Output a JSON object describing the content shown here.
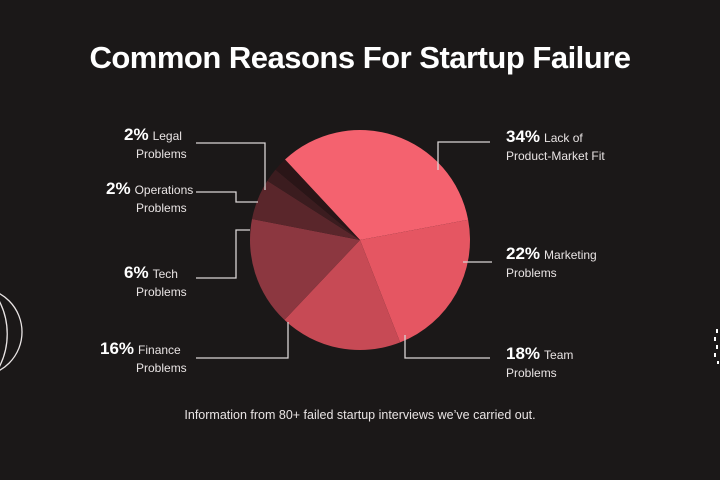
{
  "page": {
    "title": "Common Reasons For Startup Failure",
    "footnote": "Information from 80+ failed startup interviews we’ve carried out."
  },
  "chart_data": {
    "type": "pie",
    "title": "Common Reasons For Startup Failure",
    "slices": [
      {
        "pct_label": "34%",
        "label_line1": "Lack of",
        "label_line2": "Product-Market Fit",
        "value": 34,
        "color": "#f4626f"
      },
      {
        "pct_label": "22%",
        "label_line1": "Marketing",
        "label_line2": "Problems",
        "value": 22,
        "color": "#e55662"
      },
      {
        "pct_label": "18%",
        "label_line1": "Team",
        "label_line2": "Problems",
        "value": 18,
        "color": "#c74a55"
      },
      {
        "pct_label": "16%",
        "label_line1": "Finance",
        "label_line2": "Problems",
        "value": 16,
        "color": "#8c3740"
      },
      {
        "pct_label": "6%",
        "label_line1": "Tech",
        "label_line2": "Problems",
        "value": 6,
        "color": "#5a262b"
      },
      {
        "pct_label": "2%",
        "label_line1": "Operations",
        "label_line2": "Problems",
        "value": 2,
        "color": "#3b1c1f"
      },
      {
        "pct_label": "2%",
        "label_line1": "Legal",
        "label_line2": "Problems",
        "value": 2,
        "color": "#2a1517"
      }
    ],
    "colors": {
      "background": "#1b1818",
      "leader_line": "#d9d4d4"
    }
  }
}
